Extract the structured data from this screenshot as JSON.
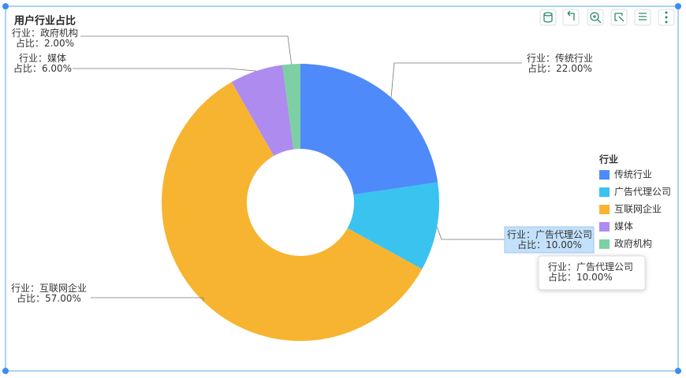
{
  "chart_data": {
    "type": "pie",
    "donut": true,
    "title": "用户行业占比",
    "categories": [
      "传统行业",
      "广告代理公司",
      "互联网企业",
      "媒体",
      "政府机构"
    ],
    "values": [
      22,
      10,
      57,
      6,
      2
    ],
    "value_labels": [
      "22.00%",
      "10.00%",
      "57.00%",
      "6.00%",
      "2.00%"
    ],
    "colors": [
      "#4e8af9",
      "#3ac3ef",
      "#f7b431",
      "#ad8bef",
      "#7dcfa4"
    ],
    "category_prefix": "行业：",
    "value_prefix": "占比：",
    "legend_title": "行业",
    "legend_position": "right",
    "tooltip_index": 1
  }
}
